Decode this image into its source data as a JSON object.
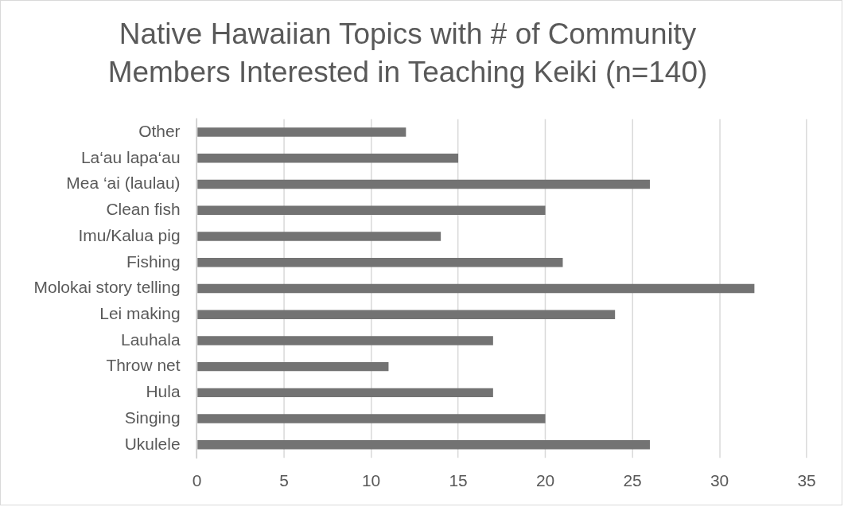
{
  "chart_data": {
    "type": "bar",
    "orientation": "horizontal",
    "title": "Native Hawaiian Topics with # of Community Members Interested in Teaching Keiki (n=140)",
    "categories": [
      "Other",
      "La‘au lapa‘au",
      "Mea ‘ai (laulau)",
      "Clean fish",
      "Imu/Kalua pig",
      "Fishing",
      "Molokai story telling",
      "Lei making",
      "Lauhala",
      "Throw net",
      "Hula",
      "Singing",
      "Ukulele"
    ],
    "values": [
      12,
      15,
      26,
      20,
      14,
      21,
      32,
      24,
      17,
      11,
      17,
      20,
      26
    ],
    "color": "#737373",
    "xlim": [
      0,
      35
    ],
    "xticks": [
      0,
      5,
      10,
      15,
      20,
      25,
      30,
      35
    ],
    "grid": "x"
  }
}
